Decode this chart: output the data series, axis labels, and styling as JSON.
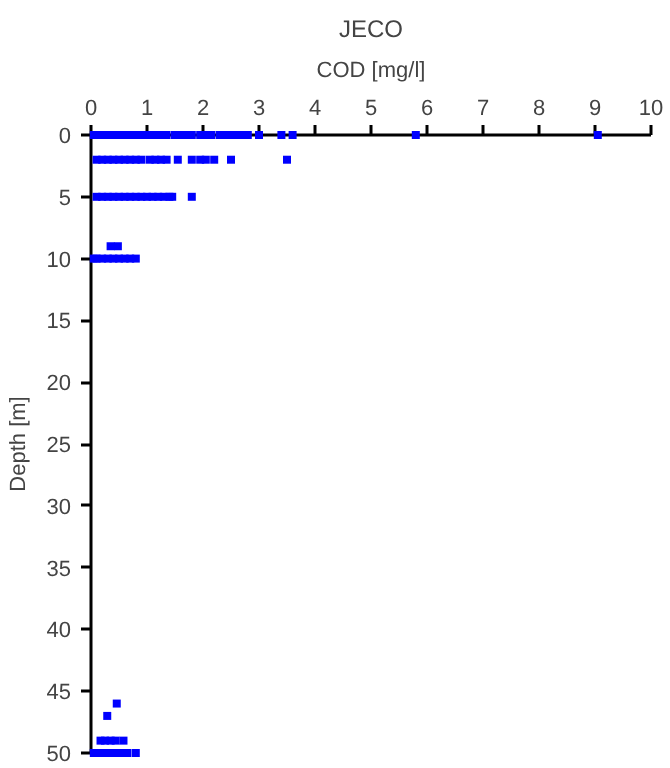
{
  "chart_data": {
    "type": "scatter",
    "title": "JECO",
    "xlabel": "COD [mg/l]",
    "ylabel": "Depth [m]",
    "xlim": [
      0,
      10
    ],
    "xticks": [
      0,
      1,
      2,
      3,
      4,
      5,
      6,
      7,
      8,
      9,
      10
    ],
    "ylim": [
      50,
      0
    ],
    "yticks": [
      0,
      5,
      10,
      15,
      20,
      25,
      30,
      35,
      40,
      45,
      50
    ],
    "grid": false,
    "marker": "square",
    "series": [
      {
        "color": "#0000ff",
        "x": [
          0.05,
          0.15,
          0.25,
          0.35,
          0.45,
          0.55,
          0.65,
          0.75,
          0.85,
          0.95,
          1.05,
          1.15,
          1.25,
          1.35,
          1.5,
          1.6,
          1.7,
          1.8,
          1.95,
          2.05,
          2.15,
          2.3,
          2.4,
          2.5,
          2.6,
          2.7,
          2.8,
          3.0,
          3.4,
          3.6,
          5.8,
          9.05,
          0.1,
          0.2,
          0.3,
          0.4,
          0.5,
          0.6,
          0.7,
          0.8,
          0.9,
          1.05,
          1.15,
          1.25,
          1.35,
          1.55,
          1.8,
          1.95,
          2.05,
          2.2,
          2.5,
          3.5,
          0.1,
          0.2,
          0.3,
          0.4,
          0.5,
          0.6,
          0.7,
          0.8,
          0.9,
          1.0,
          1.1,
          1.2,
          1.3,
          1.4,
          1.45,
          1.8,
          0.35,
          0.48,
          0.05,
          0.1,
          0.2,
          0.3,
          0.4,
          0.5,
          0.6,
          0.7,
          0.8,
          0.46,
          0.29,
          0.17,
          0.25,
          0.35,
          0.44,
          0.58,
          0.05,
          0.15,
          0.25,
          0.35,
          0.45,
          0.55,
          0.65,
          0.8
        ],
        "values": [
          0,
          0,
          0,
          0,
          0,
          0,
          0,
          0,
          0,
          0,
          0,
          0,
          0,
          0,
          0,
          0,
          0,
          0,
          0,
          0,
          0,
          0,
          0,
          0,
          0,
          0,
          0,
          0,
          0,
          0,
          0,
          0,
          2,
          2,
          2,
          2,
          2,
          2,
          2,
          2,
          2,
          2,
          2,
          2,
          2,
          2,
          2,
          2,
          2,
          2,
          2,
          2,
          5,
          5,
          5,
          5,
          5,
          5,
          5,
          5,
          5,
          5,
          5,
          5,
          5,
          5,
          5,
          5,
          9,
          9,
          10,
          10,
          10,
          10,
          10,
          10,
          10,
          10,
          10,
          46,
          47,
          49,
          49,
          49,
          49,
          49,
          50,
          50,
          50,
          50,
          50,
          50,
          50,
          50
        ]
      }
    ]
  }
}
